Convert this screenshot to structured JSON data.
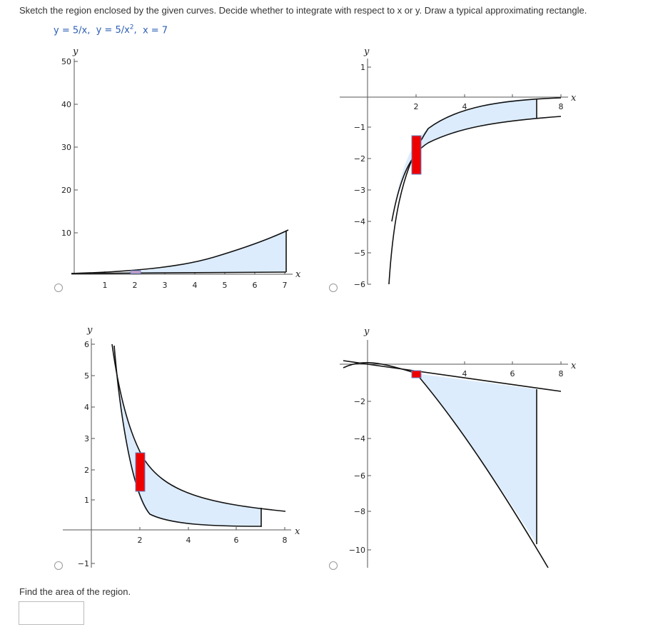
{
  "question": {
    "prompt": "Sketch the region enclosed by the given curves. Decide whether to integrate with respect to x or y. Draw a typical approximating rectangle.",
    "eq1_lhs": "y = 5/x,",
    "eq2_lhs": "y = 5/x",
    "eq2_exp": "2",
    "eq2_tail": ",",
    "eq3": "x = 7"
  },
  "graphs": {
    "g1": {
      "y_axis_label": "y",
      "x_axis_label": "x",
      "y_ticks": [
        "50",
        "40",
        "30",
        "20",
        "10"
      ],
      "x_ticks": [
        "1",
        "2",
        "3",
        "4",
        "5",
        "6",
        "7"
      ]
    },
    "g2": {
      "y_axis_label": "y",
      "x_axis_label": "x",
      "y_ticks": [
        "1",
        "−1",
        "−2",
        "−3",
        "−4",
        "−5",
        "−6"
      ],
      "x_ticks": [
        "2",
        "4",
        "6",
        "8"
      ]
    },
    "g3": {
      "y_axis_label": "y",
      "x_axis_label": "x",
      "y_ticks": [
        "6",
        "5",
        "4",
        "3",
        "2",
        "1",
        "−1"
      ],
      "x_ticks": [
        "2",
        "4",
        "6",
        "8"
      ]
    },
    "g4": {
      "y_axis_label": "y",
      "x_axis_label": "x",
      "y_ticks": [
        "−2",
        "−4",
        "−6",
        "−8",
        "−10"
      ],
      "x_ticks": [
        "4",
        "6",
        "8"
      ]
    }
  },
  "colors": {
    "region_fill": "#dcecfd",
    "rectangle_fill": "#ee0000",
    "rectangle_stroke": "#6688cc",
    "curve": "#111111"
  },
  "area_question": {
    "label": "Find the area of the region.",
    "answer_value": ""
  }
}
